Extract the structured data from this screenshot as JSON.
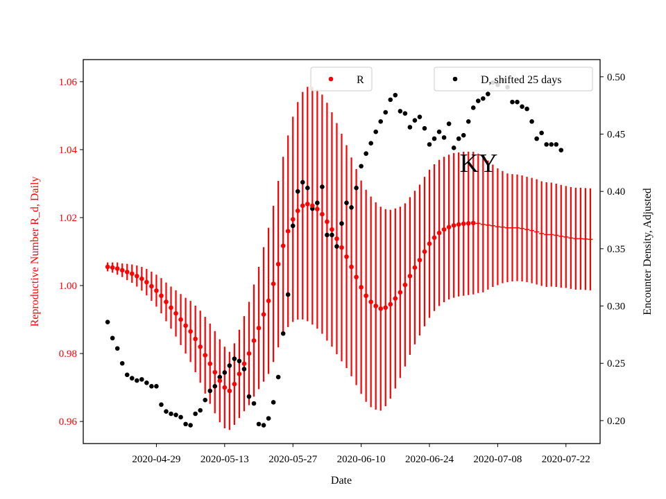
{
  "chart_data": {
    "type": "scatter",
    "annotation": "KY",
    "xlabel": "Date",
    "ylabel_left": "Reproductive Number R_d, Daily",
    "ylabel_right": "Encounter Density, Adjusted",
    "ylim_left": [
      0.9535,
      1.0665
    ],
    "ylim_right": [
      0.18,
      0.515
    ],
    "xlim": [
      "2020-04-14",
      "2020-07-29"
    ],
    "x_ticks": [
      "2020-04-29",
      "2020-05-13",
      "2020-05-27",
      "2020-06-10",
      "2020-06-24",
      "2020-07-08",
      "2020-07-22"
    ],
    "y_ticks_left": [
      "0.96",
      "0.98",
      "1.00",
      "1.02",
      "1.04",
      "1.06"
    ],
    "y_ticks_right": [
      "0.20",
      "0.25",
      "0.30",
      "0.35",
      "0.40",
      "0.45",
      "0.50"
    ],
    "colors": {
      "r_series": "#ff0000",
      "d_series": "#000000",
      "left_axis": "#ff0000",
      "right_axis": "#000000"
    },
    "series": [
      {
        "name": "R",
        "axis": "left",
        "color": "#ff0000",
        "x_start": "2020-04-19",
        "last_marker_index": 75,
        "values": [
          1.0055,
          1.0053,
          1.005,
          1.0045,
          1.004,
          1.0035,
          1.0028,
          1.002,
          1.001,
          0.9998,
          0.9985,
          0.997,
          0.9952,
          0.9935,
          0.9918,
          0.99,
          0.9882,
          0.9865,
          0.9843,
          0.982,
          0.9795,
          0.977,
          0.9745,
          0.972,
          0.97,
          0.969,
          0.971,
          0.974,
          0.977,
          0.98,
          0.9838,
          0.9875,
          0.9915,
          0.9955,
          1.0005,
          1.0063,
          1.0117,
          1.016,
          1.0195,
          1.022,
          1.0235,
          1.024,
          1.0235,
          1.0225,
          1.021,
          1.0188,
          1.0165,
          1.0138,
          1.0112,
          1.0085,
          1.0055,
          1.0025,
          0.9995,
          0.997,
          0.9952,
          0.994,
          0.9932,
          0.9935,
          0.9945,
          0.9962,
          0.998,
          1.0002,
          1.0028,
          1.0053,
          1.0075,
          1.01,
          1.0123,
          1.0141,
          1.0155,
          1.0165,
          1.0172,
          1.0177,
          1.018,
          1.0182,
          1.0183,
          1.0184,
          1.0183,
          1.018,
          1.0178,
          1.0176,
          1.0173,
          1.0172,
          1.017,
          1.017,
          1.017,
          1.0168,
          1.0165,
          1.0162,
          1.0158,
          1.0153,
          1.015,
          1.015,
          1.0148,
          1.0145,
          1.0143,
          1.014,
          1.0138,
          1.0138,
          1.0137,
          1.0136
        ],
        "error": [
          0.0013,
          0.0015,
          0.0018,
          0.002,
          0.0024,
          0.0027,
          0.0031,
          0.0035,
          0.0039,
          0.0043,
          0.0047,
          0.0052,
          0.0057,
          0.0062,
          0.0068,
          0.0075,
          0.0082,
          0.009,
          0.0098,
          0.0106,
          0.0113,
          0.0118,
          0.0121,
          0.0122,
          0.012,
          0.0115,
          0.012,
          0.013,
          0.014,
          0.0152,
          0.0165,
          0.018,
          0.0198,
          0.0215,
          0.023,
          0.0245,
          0.0262,
          0.0282,
          0.0302,
          0.032,
          0.0335,
          0.0345,
          0.035,
          0.0352,
          0.0352,
          0.035,
          0.0345,
          0.034,
          0.0335,
          0.0328,
          0.0322,
          0.0318,
          0.0314,
          0.0312,
          0.031,
          0.0305,
          0.03,
          0.029,
          0.0278,
          0.0265,
          0.0252,
          0.024,
          0.0232,
          0.0226,
          0.0222,
          0.022,
          0.0218,
          0.0216,
          0.0215,
          0.0214,
          0.0213,
          0.0213,
          0.0212,
          0.0212,
          0.0211,
          0.021,
          0.0205,
          0.02,
          0.019,
          0.018,
          0.0172,
          0.0165,
          0.016,
          0.0158,
          0.0157,
          0.0156,
          0.0155,
          0.0155,
          0.0155,
          0.0154,
          0.0154,
          0.0153,
          0.0152,
          0.0151,
          0.015,
          0.015,
          0.015,
          0.015,
          0.015,
          0.015
        ]
      },
      {
        "name": "D, shifted 25 days",
        "axis": "right",
        "color": "#000000",
        "x_start": "2020-04-19",
        "values": [
          0.286,
          0.272,
          0.263,
          0.25,
          0.24,
          0.237,
          0.235,
          0.236,
          0.233,
          0.23,
          0.23,
          0.214,
          0.208,
          0.206,
          0.205,
          0.203,
          0.197,
          0.196,
          0.206,
          0.209,
          0.218,
          0.226,
          0.23,
          0.238,
          0.242,
          0.248,
          0.254,
          0.252,
          0.245,
          0.221,
          0.215,
          0.197,
          0.196,
          0.202,
          0.216,
          0.238,
          0.276,
          0.31,
          0.37,
          0.4,
          0.408,
          0.403,
          0.385,
          0.39,
          0.404,
          0.362,
          0.362,
          0.352,
          0.372,
          0.39,
          0.386,
          0.403,
          0.422,
          0.433,
          0.442,
          0.452,
          0.461,
          0.469,
          0.48,
          0.484,
          0.47,
          0.468,
          0.456,
          0.462,
          0.465,
          0.455,
          0.441,
          0.446,
          0.452,
          0.447,
          0.459,
          0.438,
          0.446,
          0.449,
          0.461,
          0.473,
          0.479,
          0.481,
          0.485,
          0.495,
          0.493,
          0.497,
          0.491,
          0.478,
          0.478,
          0.474,
          0.472,
          0.461,
          0.446,
          0.451,
          0.441,
          0.441,
          0.441,
          0.436
        ]
      }
    ]
  }
}
